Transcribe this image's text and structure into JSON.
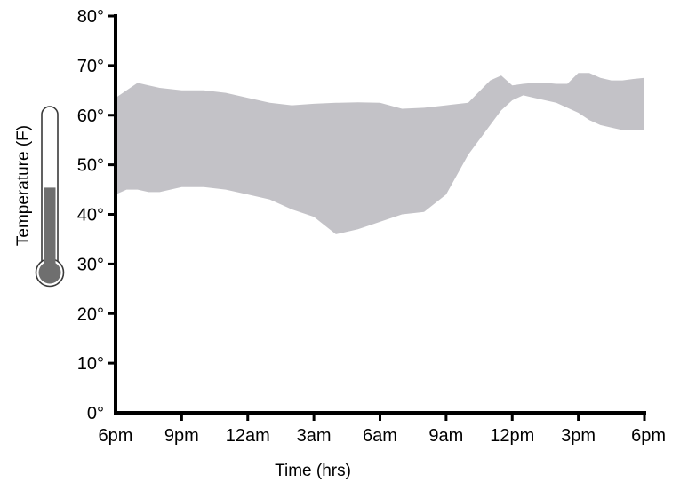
{
  "chart_data": {
    "type": "area",
    "xlabel": "Time (hrs)",
    "ylabel": "Temperature (F)",
    "ylim": [
      0,
      80
    ],
    "xlim": [
      0,
      24
    ],
    "x_tick_labels": [
      "6pm",
      "9pm",
      "12am",
      "3am",
      "6am",
      "9am",
      "12pm",
      "3pm",
      "6pm"
    ],
    "y_tick_labels": [
      "0°",
      "10°",
      "20°",
      "30°",
      "40°",
      "50°",
      "60°",
      "70°",
      "80°"
    ],
    "grid": false,
    "band_color": "#c3c2c7",
    "thermometer_fill_level": 0.52,
    "series": [
      {
        "x": [
          0,
          0.5,
          1,
          1.5,
          2,
          3,
          4,
          5,
          6,
          7,
          8,
          9,
          10,
          11,
          12,
          13,
          14,
          15,
          16,
          17,
          17.5,
          18,
          18.5,
          19,
          19.5,
          20,
          20.5,
          21,
          21.5,
          22,
          22.5,
          23,
          23.5,
          24
        ],
        "high": [
          63.5,
          65,
          66.5,
          66,
          65.5,
          65,
          65,
          64.5,
          63.5,
          62.5,
          62,
          62.3,
          62.5,
          62.6,
          62.5,
          61.3,
          61.5,
          62,
          62.5,
          67,
          68,
          66,
          66.3,
          66.5,
          66.5,
          66.3,
          66.3,
          68.5,
          68.5,
          67.5,
          67,
          67,
          67.3,
          67.5
        ],
        "low": [
          44,
          45,
          45,
          44.5,
          44.5,
          45.5,
          45.5,
          45,
          44,
          43,
          41,
          39.5,
          36,
          37,
          38.5,
          40,
          40.5,
          44,
          52,
          58,
          61,
          63,
          64,
          63.5,
          63,
          62.5,
          61.5,
          60.5,
          59,
          58,
          57.5,
          57,
          57,
          57
        ]
      }
    ]
  }
}
